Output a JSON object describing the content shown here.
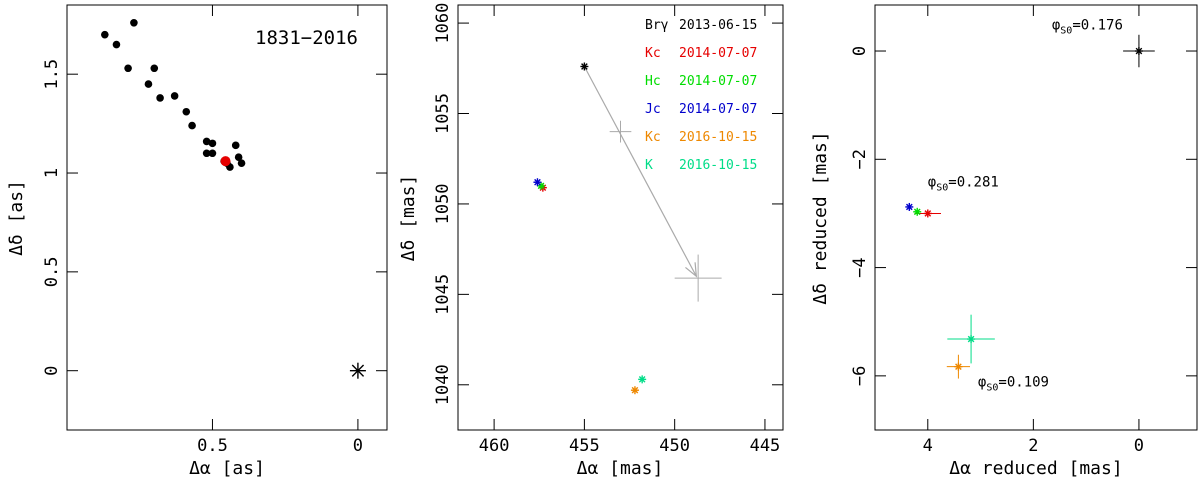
{
  "chart_data": [
    {
      "type": "scatter",
      "xlabel": "Δα [as]",
      "ylabel": "Δδ [as]",
      "xlim": [
        1.0,
        -0.1
      ],
      "ylim": [
        -0.3,
        1.85
      ],
      "xticks": [
        {
          "v": 0.5,
          "label": "0.5"
        },
        {
          "v": 0,
          "label": "0"
        }
      ],
      "yticks": [
        {
          "v": 0,
          "label": "0"
        },
        {
          "v": 0.5,
          "label": "0.5"
        },
        {
          "v": 1,
          "label": "1"
        },
        {
          "v": 1.5,
          "label": "1.5"
        }
      ],
      "title": "1831−2016",
      "series": [
        {
          "marker": "dot",
          "color": "#000000",
          "points": [
            [
              0.87,
              1.7
            ],
            [
              0.83,
              1.65
            ],
            [
              0.77,
              1.76
            ],
            [
              0.79,
              1.53
            ],
            [
              0.72,
              1.45
            ],
            [
              0.7,
              1.53
            ],
            [
              0.68,
              1.38
            ],
            [
              0.63,
              1.39
            ],
            [
              0.59,
              1.31
            ],
            [
              0.57,
              1.24
            ],
            [
              0.52,
              1.16
            ],
            [
              0.5,
              1.15
            ],
            [
              0.52,
              1.1
            ],
            [
              0.5,
              1.1
            ],
            [
              0.46,
              1.06
            ],
            [
              0.45,
              1.05
            ],
            [
              0.44,
              1.03
            ],
            [
              0.42,
              1.14
            ],
            [
              0.41,
              1.08
            ],
            [
              0.4,
              1.05
            ]
          ]
        },
        {
          "marker": "dot",
          "color": "#e60000",
          "points": [
            [
              0.455,
              1.06
            ]
          ]
        },
        {
          "marker": "asterisk",
          "color": "#000000",
          "points": [
            [
              0.0,
              0.0
            ]
          ]
        }
      ]
    },
    {
      "type": "scatter",
      "xlabel": "Δα [mas]",
      "ylabel": "Δδ [mas]",
      "xlim": [
        462,
        444
      ],
      "ylim": [
        1037.5,
        1061
      ],
      "xticks": [
        {
          "v": 460,
          "label": "460"
        },
        {
          "v": 455,
          "label": "455"
        },
        {
          "v": 450,
          "label": "450"
        },
        {
          "v": 445,
          "label": "445"
        }
      ],
      "yticks": [
        {
          "v": 1040,
          "label": "1040"
        },
        {
          "v": 1045,
          "label": "1045"
        },
        {
          "v": 1050,
          "label": "1050"
        },
        {
          "v": 1055,
          "label": "1055"
        },
        {
          "v": 1060,
          "label": "1060"
        }
      ],
      "legend": [
        {
          "name": "Brγ",
          "date": "2013-06-15",
          "color": "#000000"
        },
        {
          "name": "Kc",
          "date": "2014-07-07",
          "color": "#e60000"
        },
        {
          "name": "Hc",
          "date": "2014-07-07",
          "color": "#00dd00"
        },
        {
          "name": "Jc",
          "date": "2014-07-07",
          "color": "#0000cc"
        },
        {
          "name": "Kc",
          "date": "2016-10-15",
          "color": "#ee8800"
        },
        {
          "name": "K",
          "date": "2016-10-15",
          "color": "#00dd88"
        }
      ],
      "points": [
        {
          "x": 455.0,
          "y": 1057.6,
          "color": "#000000"
        },
        {
          "x": 457.3,
          "y": 1050.9,
          "color": "#e60000"
        },
        {
          "x": 457.4,
          "y": 1051.0,
          "color": "#00dd00"
        },
        {
          "x": 457.6,
          "y": 1051.2,
          "color": "#0000cc"
        },
        {
          "x": 452.2,
          "y": 1039.7,
          "color": "#ee8800"
        },
        {
          "x": 451.8,
          "y": 1040.3,
          "color": "#00dd88"
        }
      ],
      "predictions": [
        {
          "x": 453.0,
          "y": 1054.0,
          "err": 0.6,
          "color": "#aaaaaa"
        },
        {
          "x": 448.7,
          "y": 1045.9,
          "err": 1.3,
          "color": "#aaaaaa"
        }
      ],
      "arrow": {
        "from": [
          455.0,
          1057.6
        ],
        "to": [
          448.8,
          1046.0
        ],
        "color": "#aaaaaa"
      }
    },
    {
      "type": "scatter",
      "xlabel": "Δα reduced [mas]",
      "ylabel": "Δδ reduced [mas]",
      "xlim": [
        5.0,
        -1.1
      ],
      "ylim": [
        -7.0,
        0.85
      ],
      "xticks": [
        {
          "v": 4,
          "label": "4"
        },
        {
          "v": 2,
          "label": "2"
        },
        {
          "v": 0,
          "label": "0"
        }
      ],
      "yticks": [
        {
          "v": -6,
          "label": "−6"
        },
        {
          "v": -4,
          "label": "−4"
        },
        {
          "v": -2,
          "label": "−2"
        },
        {
          "v": 0,
          "label": "0"
        }
      ],
      "points": [
        {
          "x": 0.0,
          "y": 0.0,
          "color": "#000000",
          "ex": 0.3,
          "ey": 0.3
        },
        {
          "x": 4.0,
          "y": -3.0,
          "color": "#e60000",
          "ex": 0.25,
          "ey": 0.0
        },
        {
          "x": 4.2,
          "y": -2.97,
          "color": "#00dd00",
          "ex": 0.0,
          "ey": 0.0
        },
        {
          "x": 4.35,
          "y": -2.88,
          "color": "#0000cc",
          "ex": 0.0,
          "ey": 0.0
        },
        {
          "x": 3.42,
          "y": -5.83,
          "color": "#ee8800",
          "ex": 0.22,
          "ey": 0.22
        },
        {
          "x": 3.18,
          "y": -5.32,
          "color": "#00dd88",
          "ex": 0.45,
          "ey": 0.45
        }
      ],
      "annotations": [
        {
          "text": "=0.176",
          "x": 1.65,
          "y": 0.4
        },
        {
          "text": "=0.281",
          "x": 4.0,
          "y": -2.5
        },
        {
          "text": "=0.109",
          "x": 3.05,
          "y": -6.2
        }
      ]
    }
  ]
}
